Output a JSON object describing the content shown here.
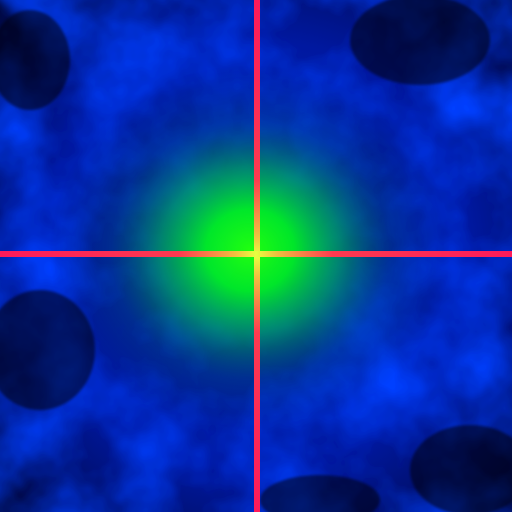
{
  "scene": {
    "description_free": true,
    "colors": {
      "background": "#000000",
      "deep_blue": "#0010a0",
      "blue": "#0020ff",
      "green_core": "#00ff20",
      "green_halo": "#00c040",
      "crosshair_red": "#ff1a5a",
      "crosshair_yellow": "#e8ff40"
    },
    "crosshair": {
      "visible": true,
      "icon": "crosshair-icon"
    }
  }
}
